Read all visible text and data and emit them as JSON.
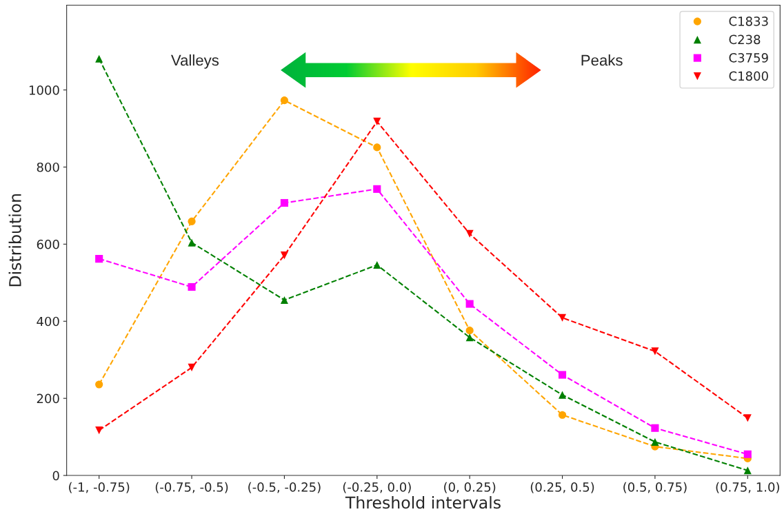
{
  "chart_data": {
    "type": "line",
    "xlabel": "Threshold intervals",
    "ylabel": "Distribution",
    "categories": [
      "(-1, -0.75)",
      "(-0.75, -0.5)",
      "(-0.5, -0.25)",
      "(-0.25, 0.0)",
      "(0, 0.25)",
      "(0.25, 0.5)",
      "(0.5, 0.75)",
      "(0.75, 1.0)"
    ],
    "series": [
      {
        "name": "C1833",
        "color": "#ffa500",
        "marker": "circle",
        "values": [
          236,
          659,
          973,
          851,
          376,
          157,
          75,
          44
        ]
      },
      {
        "name": "C238",
        "color": "#008000",
        "marker": "triangle",
        "values": [
          1081,
          604,
          455,
          546,
          358,
          209,
          87,
          13
        ]
      },
      {
        "name": "C3759",
        "color": "#ff00ff",
        "marker": "square",
        "values": [
          562,
          489,
          707,
          743,
          445,
          261,
          123,
          55
        ]
      },
      {
        "name": "C1800",
        "color": "#ff0000",
        "marker": "triangle_down",
        "values": [
          117,
          280,
          571,
          918,
          627,
          409,
          322,
          149
        ]
      }
    ],
    "ylim": [
      0,
      1220
    ],
    "yticks": [
      0,
      200,
      400,
      600,
      800,
      1000
    ],
    "line_style": "dashed",
    "grid": false,
    "legend": "top right",
    "annotations": [
      "Valleys",
      "Peaks"
    ]
  }
}
